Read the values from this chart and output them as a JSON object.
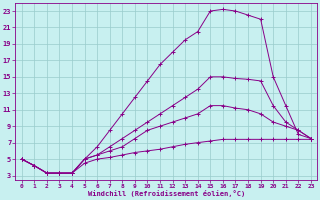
{
  "xlabel": "Windchill (Refroidissement éolien,°C)",
  "background_color": "#c8f0f0",
  "line_color": "#880088",
  "grid_color": "#99cccc",
  "x_ticks": [
    0,
    1,
    2,
    3,
    4,
    5,
    6,
    7,
    8,
    9,
    10,
    11,
    12,
    13,
    14,
    15,
    16,
    17,
    18,
    19,
    20,
    21,
    22,
    23
  ],
  "y_ticks": [
    3,
    5,
    7,
    9,
    11,
    13,
    15,
    17,
    19,
    21,
    23
  ],
  "xlim": [
    -0.5,
    23.5
  ],
  "ylim": [
    2.5,
    24
  ],
  "series": [
    [
      5.0,
      4.2,
      3.3,
      3.3,
      3.3,
      5.0,
      6.5,
      8.5,
      10.5,
      12.5,
      14.5,
      16.5,
      18.0,
      19.5,
      20.5,
      23.0,
      23.2,
      23.0,
      22.5,
      22.0,
      15.0,
      11.5,
      8.0,
      7.5
    ],
    [
      5.0,
      4.2,
      3.3,
      3.3,
      3.3,
      5.0,
      5.5,
      6.5,
      7.5,
      8.5,
      9.5,
      10.5,
      11.5,
      12.5,
      13.5,
      15.0,
      15.0,
      14.8,
      14.7,
      14.5,
      11.5,
      9.5,
      8.5,
      7.5
    ],
    [
      5.0,
      4.2,
      3.3,
      3.3,
      3.3,
      5.0,
      5.5,
      6.0,
      6.5,
      7.5,
      8.5,
      9.0,
      9.5,
      10.0,
      10.5,
      11.5,
      11.5,
      11.2,
      11.0,
      10.5,
      9.5,
      9.0,
      8.5,
      7.5
    ],
    [
      5.0,
      4.2,
      3.3,
      3.3,
      3.3,
      4.5,
      5.0,
      5.2,
      5.5,
      5.8,
      6.0,
      6.2,
      6.5,
      6.8,
      7.0,
      7.2,
      7.4,
      7.4,
      7.4,
      7.4,
      7.4,
      7.4,
      7.4,
      7.4
    ]
  ]
}
